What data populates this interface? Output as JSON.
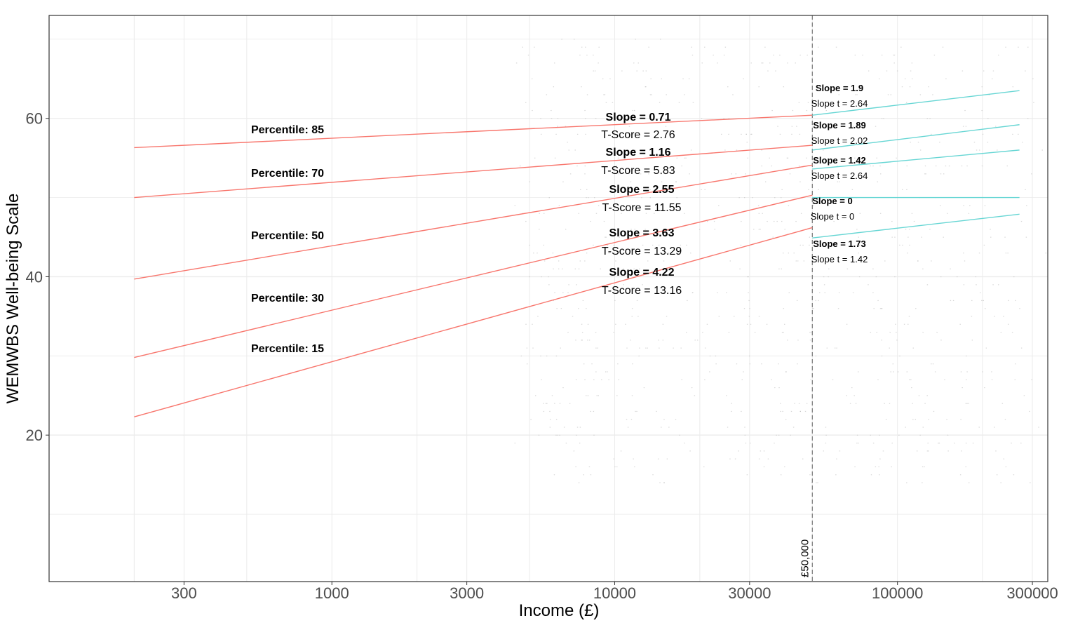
{
  "chart_data": {
    "type": "line",
    "xlabel": "Income (£)",
    "ylabel": "WEMWBS Well-being Scale",
    "x_scale": "log10",
    "xlim": [
      100,
      340000
    ],
    "ylim": [
      1.5,
      73
    ],
    "x_ticks": [
      300,
      1000,
      3000,
      10000,
      30000,
      100000,
      300000
    ],
    "x_tick_labels": [
      "300",
      "1000",
      "3000",
      "10000",
      "30000",
      "100000",
      "300000"
    ],
    "y_ticks": [
      20,
      40,
      60
    ],
    "y_tick_labels": [
      "20",
      "40",
      "60"
    ],
    "grid": true,
    "threshold": {
      "x": 50000,
      "label": "£50,000",
      "style": "dashed"
    },
    "colors": {
      "below": "#f8766d",
      "above": "#67d6d4",
      "grid": "#ebebeb",
      "points": "#bdbdbd",
      "threshold": "#7f7f7f"
    },
    "series": [
      {
        "name": "Percentile: 85",
        "below": {
          "x": [
            200,
            50000
          ],
          "y": [
            56.3,
            60.4
          ],
          "slope_label": "Slope = 0.71",
          "stat_label": "T-Score = 2.76"
        },
        "above": {
          "x": [
            50000,
            270000
          ],
          "y": [
            60.4,
            63.5
          ],
          "slope_label": "Slope = 1.9",
          "stat_label": "Slope t = 2.64"
        }
      },
      {
        "name": "Percentile: 70",
        "below": {
          "x": [
            200,
            50000
          ],
          "y": [
            50.0,
            56.6
          ],
          "slope_label": "Slope = 1.16",
          "stat_label": "T-Score = 5.83"
        },
        "above": {
          "x": [
            50000,
            270000
          ],
          "y": [
            56.0,
            59.2
          ],
          "slope_label": "Slope = 1.89",
          "stat_label": "Slope t = 2.02"
        }
      },
      {
        "name": "Percentile: 50",
        "below": {
          "x": [
            200,
            50000
          ],
          "y": [
            39.7,
            54.1
          ],
          "slope_label": "Slope = 2.55",
          "stat_label": "T-Score = 11.55"
        },
        "above": {
          "x": [
            50000,
            270000
          ],
          "y": [
            53.6,
            56.0
          ],
          "slope_label": "Slope = 1.42",
          "stat_label": "Slope t = 2.64"
        }
      },
      {
        "name": "Percentile: 30",
        "below": {
          "x": [
            200,
            50000
          ],
          "y": [
            29.8,
            50.3
          ],
          "slope_label": "Slope = 3.63",
          "stat_label": "T-Score = 13.29"
        },
        "above": {
          "x": [
            50000,
            270000
          ],
          "y": [
            50.0,
            50.0
          ],
          "slope_label": "Slope = 0",
          "stat_label": "Slope t = 0"
        }
      },
      {
        "name": "Percentile: 15",
        "below": {
          "x": [
            200,
            50000
          ],
          "y": [
            22.3,
            46.2
          ],
          "slope_label": "Slope = 4.22",
          "stat_label": "T-Score = 13.16"
        },
        "above": {
          "x": [
            50000,
            270000
          ],
          "y": [
            44.9,
            47.9
          ],
          "slope_label": "Slope = 1.73",
          "stat_label": "Slope t = 1.42"
        }
      }
    ]
  }
}
